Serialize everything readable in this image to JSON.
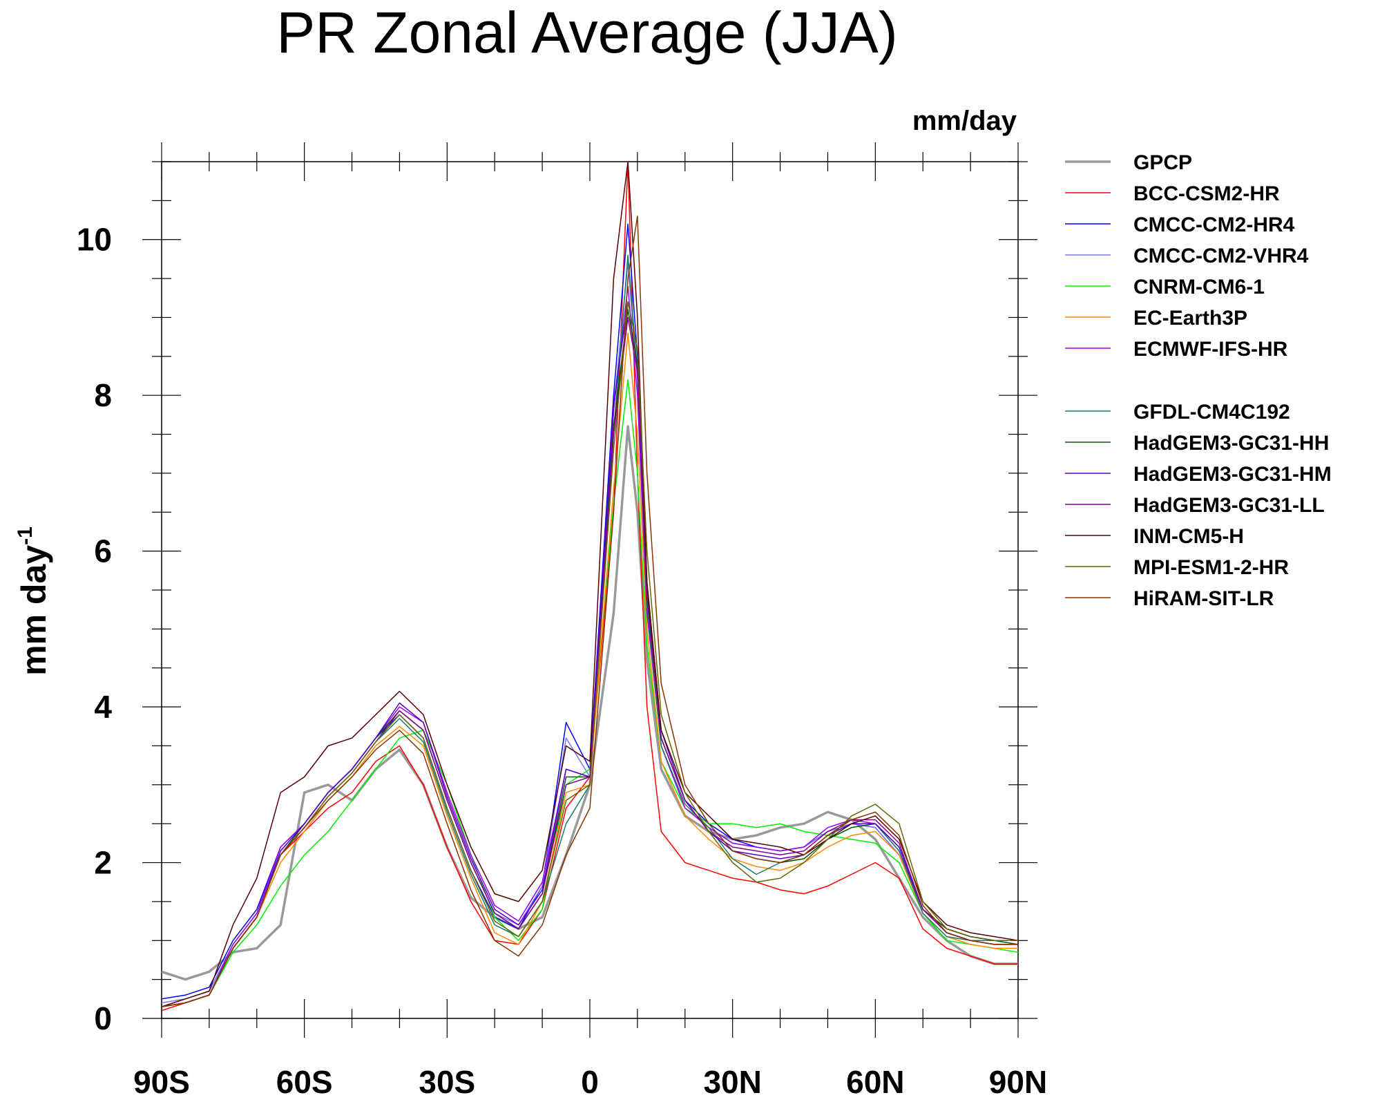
{
  "chart_data": {
    "type": "line",
    "title": "PR Zonal Average (JJA)",
    "units_label": "mm/day",
    "ylabel": "mm day",
    "ylabel_superscript": "-1",
    "xlabel": "",
    "xlim": [
      -90,
      90
    ],
    "ylim": [
      0,
      11
    ],
    "x_ticks": [
      -90,
      -60,
      -30,
      0,
      30,
      60,
      90
    ],
    "x_tick_labels": [
      "90S",
      "60S",
      "30S",
      "0",
      "30N",
      "60N",
      "90N"
    ],
    "y_ticks": [
      0,
      2,
      4,
      6,
      8,
      10
    ],
    "y_tick_labels": [
      "0",
      "2",
      "4",
      "6",
      "8",
      "10"
    ],
    "grid": false,
    "legend_position": "right",
    "x": [
      -90,
      -85,
      -80,
      -75,
      -70,
      -65,
      -60,
      -55,
      -50,
      -45,
      -40,
      -35,
      -30,
      -25,
      -20,
      -15,
      -10,
      -5,
      0,
      5,
      8,
      10,
      12,
      15,
      20,
      25,
      30,
      35,
      40,
      45,
      50,
      55,
      60,
      65,
      70,
      75,
      80,
      85,
      90
    ],
    "series": [
      {
        "name": "GPCP",
        "color": "#999999",
        "width": 3.5,
        "values": [
          0.6,
          0.5,
          0.6,
          0.85,
          0.9,
          1.2,
          2.9,
          3.0,
          2.8,
          3.2,
          3.45,
          3.0,
          2.2,
          1.55,
          1.3,
          1.15,
          1.3,
          2.1,
          3.0,
          5.2,
          7.6,
          6.5,
          4.6,
          3.2,
          2.6,
          2.4,
          2.3,
          2.35,
          2.45,
          2.5,
          2.65,
          2.55,
          2.3,
          1.8,
          1.3,
          1.0,
          0.8,
          0.7,
          0.7
        ]
      },
      {
        "name": "BCC-CSM2-HR",
        "color": "#ff0000",
        "width": 1.5,
        "values": [
          0.1,
          0.2,
          0.3,
          0.9,
          1.3,
          2.1,
          2.4,
          2.7,
          2.9,
          3.3,
          3.5,
          3.0,
          2.2,
          1.5,
          1.0,
          0.95,
          1.4,
          2.7,
          3.1,
          6.5,
          11.0,
          7.0,
          4.0,
          2.4,
          2.0,
          1.9,
          1.8,
          1.75,
          1.65,
          1.6,
          1.7,
          1.85,
          2.0,
          1.8,
          1.15,
          0.9,
          0.8,
          0.7,
          0.7
        ]
      },
      {
        "name": "CMCC-CM2-HR4",
        "color": "#0000ff",
        "width": 1.5,
        "values": [
          0.25,
          0.3,
          0.4,
          1.0,
          1.4,
          2.2,
          2.5,
          2.9,
          3.2,
          3.6,
          3.9,
          3.6,
          2.7,
          1.9,
          1.3,
          1.15,
          1.7,
          3.8,
          3.2,
          8.0,
          10.2,
          8.5,
          5.5,
          3.6,
          2.8,
          2.5,
          2.3,
          2.2,
          2.15,
          2.2,
          2.4,
          2.5,
          2.45,
          2.1,
          1.4,
          1.15,
          1.05,
          1.0,
          1.0
        ]
      },
      {
        "name": "CMCC-CM2-VHR4",
        "color": "#7777ff",
        "width": 1.5,
        "values": [
          0.2,
          0.25,
          0.35,
          0.95,
          1.35,
          2.15,
          2.5,
          2.9,
          3.2,
          3.6,
          3.95,
          3.7,
          2.8,
          2.0,
          1.35,
          1.2,
          1.7,
          3.6,
          3.1,
          7.8,
          9.7,
          8.2,
          5.3,
          3.5,
          2.7,
          2.45,
          2.25,
          2.2,
          2.15,
          2.2,
          2.4,
          2.5,
          2.45,
          2.1,
          1.4,
          1.1,
          1.0,
          1.0,
          1.0
        ]
      },
      {
        "name": "CNRM-CM6-1",
        "color": "#00ee00",
        "width": 1.5,
        "values": [
          0.15,
          0.2,
          0.3,
          0.85,
          1.2,
          1.7,
          2.1,
          2.4,
          2.8,
          3.2,
          3.6,
          3.7,
          3.0,
          2.1,
          1.3,
          1.0,
          1.4,
          3.0,
          3.2,
          6.6,
          8.2,
          7.0,
          4.8,
          3.3,
          2.7,
          2.5,
          2.5,
          2.45,
          2.5,
          2.4,
          2.35,
          2.3,
          2.25,
          2.0,
          1.35,
          1.0,
          0.95,
          0.9,
          0.85
        ]
      },
      {
        "name": "EC-Earth3P",
        "color": "#ff8800",
        "width": 1.5,
        "values": [
          0.15,
          0.2,
          0.3,
          0.9,
          1.3,
          2.0,
          2.4,
          2.8,
          3.1,
          3.5,
          3.75,
          3.5,
          2.6,
          1.8,
          1.1,
          0.95,
          1.5,
          2.9,
          3.0,
          6.8,
          8.8,
          7.5,
          5.0,
          3.3,
          2.6,
          2.3,
          2.05,
          1.95,
          1.9,
          2.0,
          2.2,
          2.35,
          2.4,
          2.1,
          1.35,
          1.05,
          0.95,
          0.9,
          0.9
        ]
      },
      {
        "name": "ECMWF-IFS-HR",
        "color": "#9900ee",
        "width": 1.5,
        "values": [
          0.15,
          0.2,
          0.3,
          0.95,
          1.35,
          2.2,
          2.5,
          2.9,
          3.2,
          3.6,
          4.0,
          3.8,
          2.9,
          2.1,
          1.45,
          1.25,
          1.75,
          3.2,
          3.1,
          7.8,
          9.4,
          8.0,
          5.2,
          3.5,
          2.7,
          2.45,
          2.25,
          2.2,
          2.15,
          2.2,
          2.45,
          2.55,
          2.5,
          2.15,
          1.4,
          1.1,
          1.0,
          1.0,
          1.0
        ]
      },
      {
        "name": "GFDL-CM4C192",
        "color": "#1a7a6a",
        "width": 1.5,
        "values": [
          0.15,
          0.2,
          0.3,
          0.9,
          1.3,
          2.1,
          2.45,
          2.85,
          3.15,
          3.55,
          3.85,
          3.55,
          2.65,
          1.85,
          1.2,
          1.05,
          1.5,
          2.5,
          3.0,
          7.5,
          9.8,
          8.3,
          5.3,
          3.5,
          2.75,
          2.45,
          2.05,
          1.85,
          2.0,
          2.1,
          2.35,
          2.5,
          2.5,
          2.15,
          1.35,
          1.05,
          1.0,
          1.0,
          1.0
        ]
      },
      {
        "name": "HadGEM3-GC31-HH",
        "color": "#005500",
        "width": 1.5,
        "values": [
          0.15,
          0.2,
          0.3,
          0.9,
          1.3,
          2.1,
          2.5,
          2.9,
          3.2,
          3.6,
          3.95,
          3.7,
          2.8,
          2.0,
          1.35,
          1.15,
          1.6,
          3.1,
          3.1,
          7.6,
          9.1,
          8.4,
          5.5,
          3.6,
          2.8,
          2.4,
          2.15,
          2.05,
          2.0,
          2.05,
          2.3,
          2.45,
          2.5,
          2.2,
          1.4,
          1.15,
          1.05,
          1.0,
          0.95
        ]
      },
      {
        "name": "HadGEM3-GC31-HM",
        "color": "#5500cc",
        "width": 1.5,
        "values": [
          0.15,
          0.2,
          0.3,
          0.9,
          1.3,
          2.15,
          2.5,
          2.9,
          3.2,
          3.6,
          4.05,
          3.8,
          2.85,
          2.05,
          1.4,
          1.2,
          1.65,
          3.2,
          3.1,
          7.9,
          9.2,
          8.6,
          5.6,
          3.7,
          2.8,
          2.4,
          2.15,
          2.1,
          2.05,
          2.1,
          2.35,
          2.5,
          2.5,
          2.2,
          1.4,
          1.1,
          1.0,
          0.95,
          0.95
        ]
      },
      {
        "name": "HadGEM3-GC31-LL",
        "color": "#880088",
        "width": 1.5,
        "values": [
          0.15,
          0.2,
          0.3,
          0.9,
          1.3,
          2.1,
          2.45,
          2.85,
          3.15,
          3.55,
          3.95,
          3.7,
          2.8,
          2.0,
          1.35,
          1.15,
          1.6,
          3.0,
          3.1,
          7.5,
          9.0,
          8.3,
          5.4,
          3.6,
          2.8,
          2.4,
          2.2,
          2.15,
          2.1,
          2.15,
          2.4,
          2.55,
          2.55,
          2.25,
          1.4,
          1.1,
          1.0,
          0.95,
          0.95
        ]
      },
      {
        "name": "INM-CM5-H",
        "color": "#550000",
        "width": 1.5,
        "values": [
          0.15,
          0.25,
          0.35,
          1.2,
          1.8,
          2.9,
          3.1,
          3.5,
          3.6,
          3.9,
          4.2,
          3.9,
          3.0,
          2.2,
          1.6,
          1.5,
          1.9,
          3.5,
          3.3,
          9.5,
          11.0,
          9.0,
          5.6,
          3.7,
          2.9,
          2.6,
          2.3,
          2.25,
          2.2,
          2.1,
          2.3,
          2.5,
          2.6,
          2.3,
          1.5,
          1.2,
          1.1,
          1.05,
          1.0
        ]
      },
      {
        "name": "MPI-ESM1-2-HR",
        "color": "#666600",
        "width": 1.5,
        "values": [
          0.15,
          0.2,
          0.3,
          0.9,
          1.3,
          2.1,
          2.45,
          2.85,
          3.15,
          3.55,
          3.9,
          3.6,
          2.7,
          1.9,
          1.25,
          1.05,
          1.5,
          2.8,
          3.0,
          7.3,
          9.2,
          8.6,
          6.0,
          3.9,
          2.9,
          2.4,
          2.0,
          1.75,
          1.8,
          2.0,
          2.3,
          2.6,
          2.75,
          2.5,
          1.5,
          1.15,
          1.05,
          1.0,
          1.0
        ]
      },
      {
        "name": "HiRAM-SIT-LR",
        "color": "#883300",
        "width": 1.5,
        "values": [
          0.15,
          0.2,
          0.3,
          0.9,
          1.3,
          2.1,
          2.45,
          2.8,
          3.1,
          3.45,
          3.7,
          3.4,
          2.5,
          1.65,
          1.0,
          0.8,
          1.2,
          2.1,
          2.7,
          6.5,
          9.5,
          10.3,
          7.0,
          4.3,
          3.0,
          2.5,
          2.15,
          2.05,
          2.0,
          2.1,
          2.35,
          2.55,
          2.65,
          2.35,
          1.45,
          1.1,
          1.0,
          0.95,
          0.95
        ]
      }
    ]
  }
}
